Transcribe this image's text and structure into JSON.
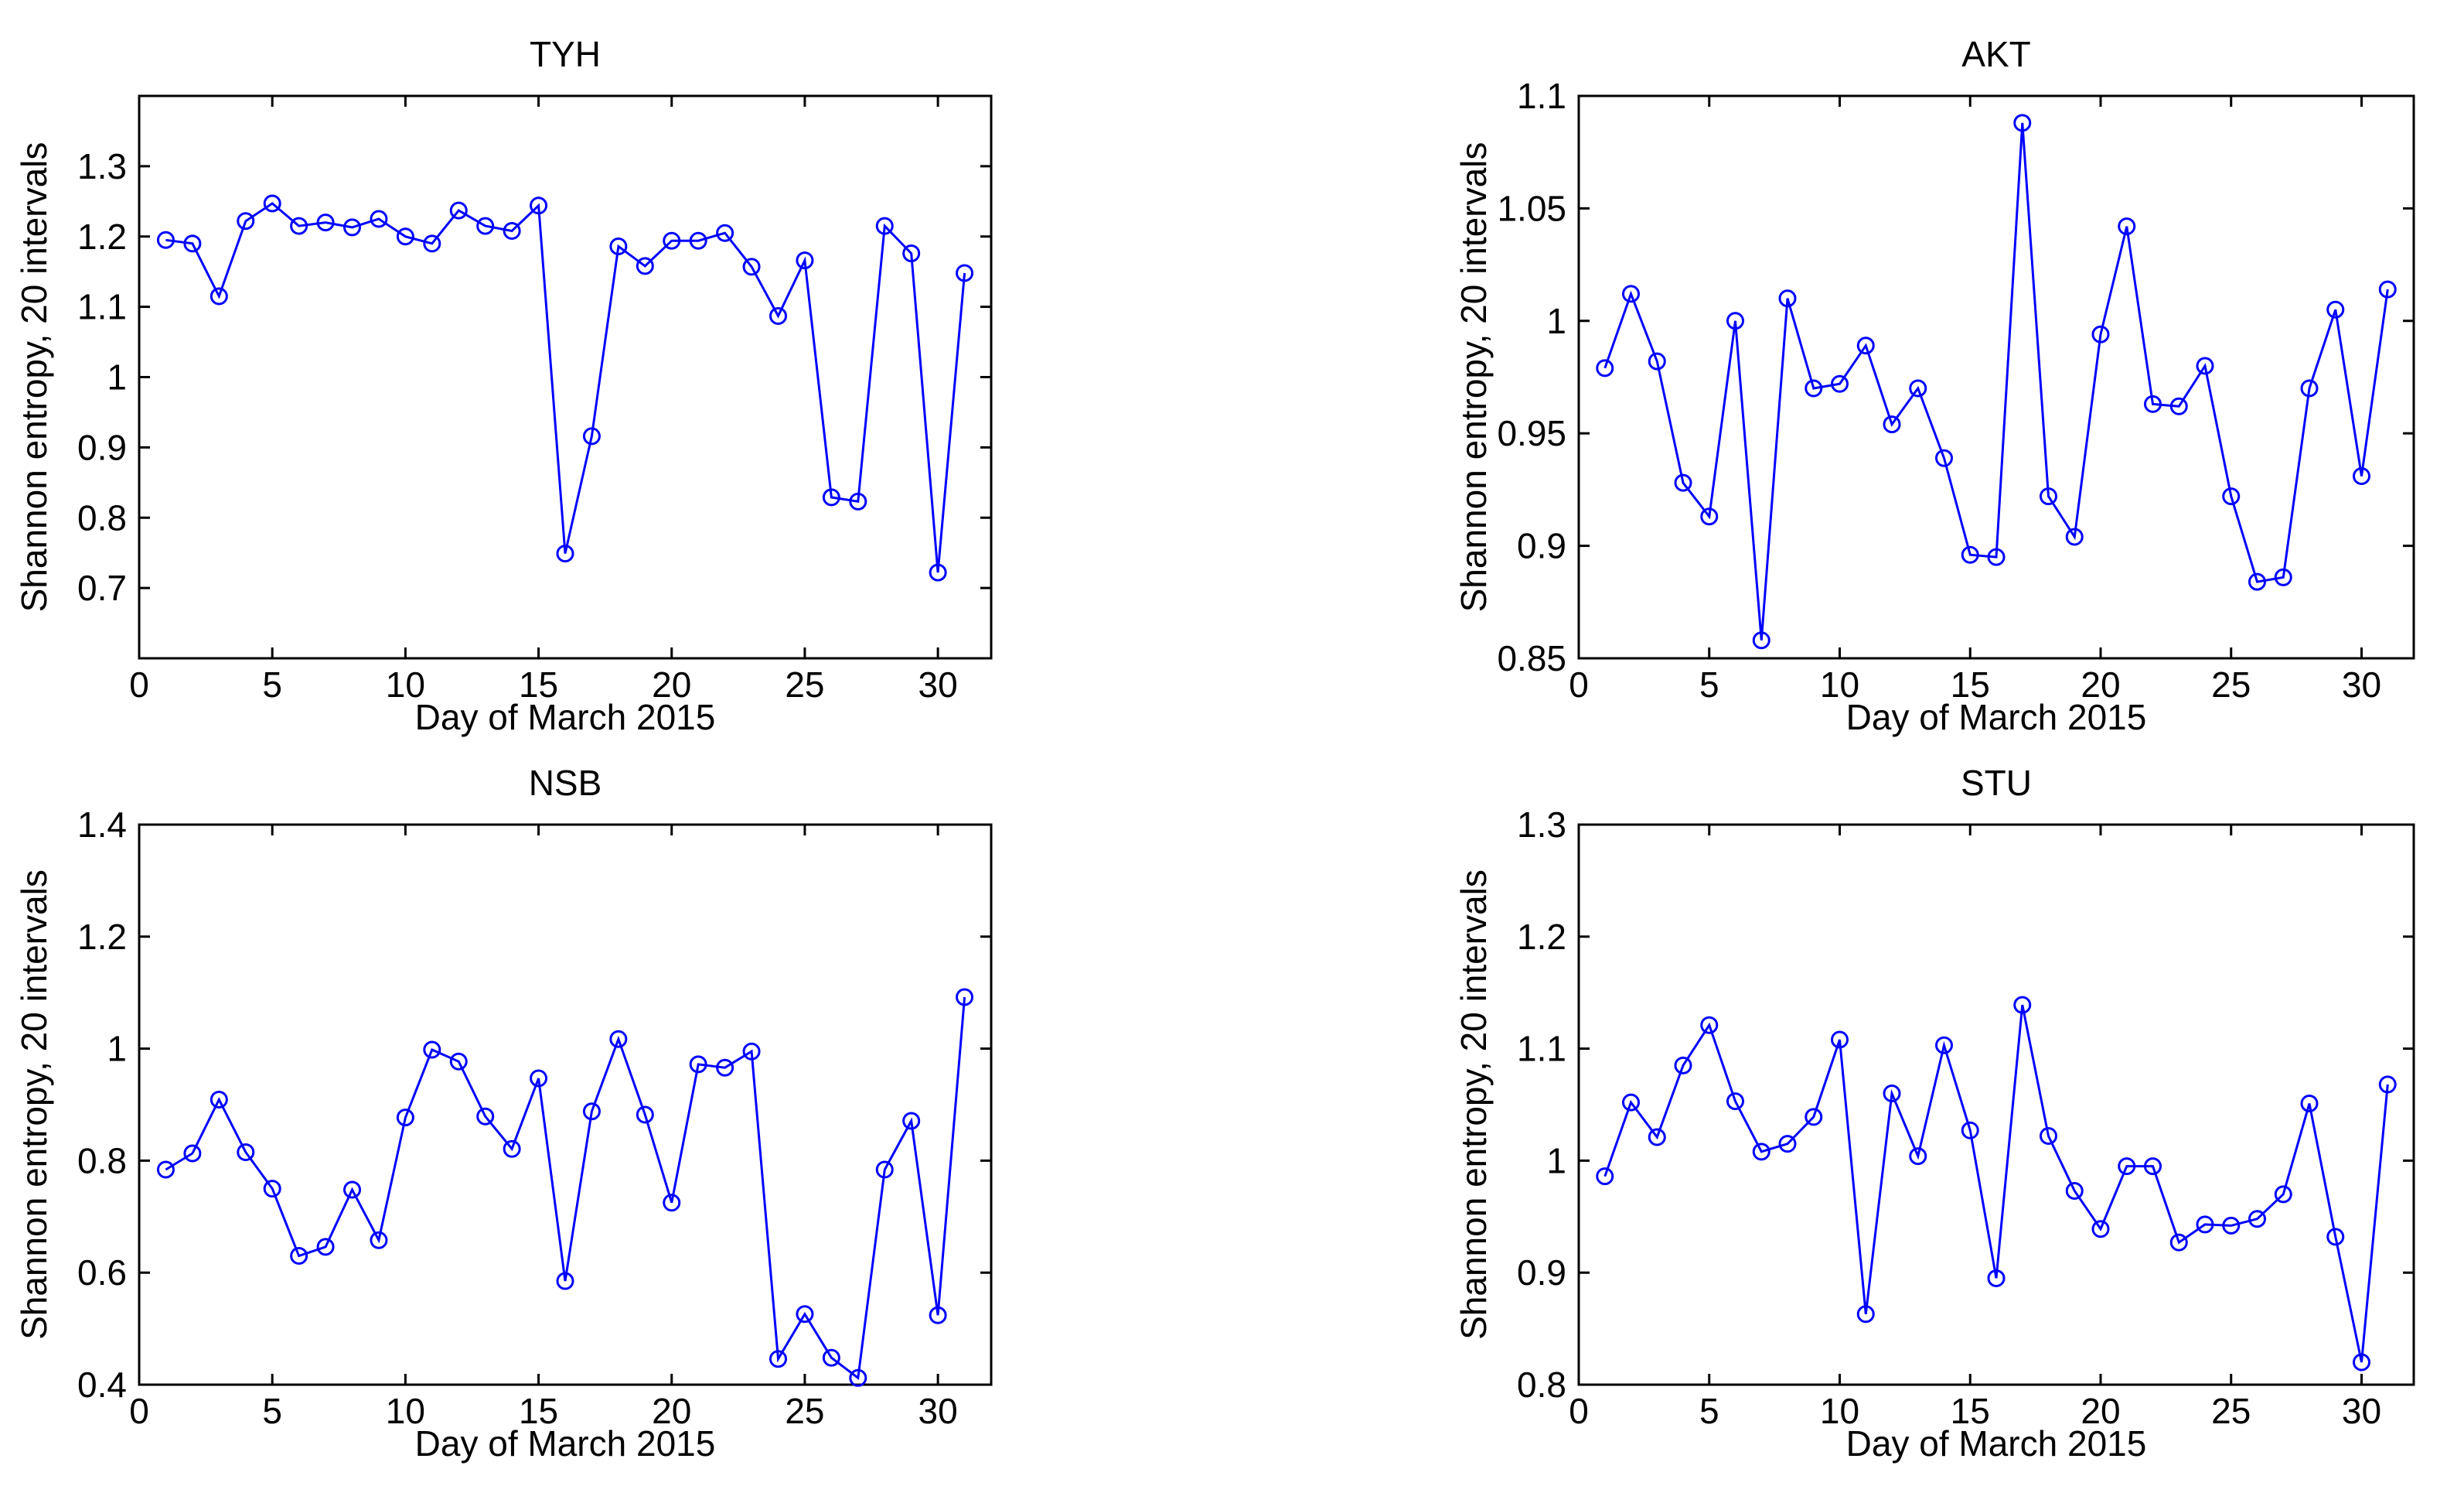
{
  "figure": {
    "description_free": true
  },
  "chart_data": [
    {
      "type": "line",
      "title": "TYH",
      "xlabel": "Day of March 2015",
      "ylabel": "Shannon entropy, 20 intervals",
      "xlim": [
        0,
        32
      ],
      "ylim": [
        0.6,
        1.4
      ],
      "xticks": [
        0,
        5,
        10,
        15,
        20,
        25,
        30
      ],
      "xtick_labels": [
        "0",
        "5",
        "10",
        "15",
        "20",
        "25",
        "30"
      ],
      "yticks": [
        0.7,
        0.8,
        0.9,
        1.0,
        1.1,
        1.2,
        1.3
      ],
      "ytick_labels": [
        "0.7",
        "0.8",
        "0.9",
        "1",
        "1.1",
        "1.2",
        "1.3"
      ],
      "grid": false,
      "color": "#0000ff",
      "marker": "circle",
      "x": [
        1,
        2,
        3,
        4,
        5,
        6,
        7,
        8,
        9,
        10,
        11,
        12,
        13,
        14,
        15,
        16,
        17,
        18,
        19,
        20,
        21,
        22,
        23,
        24,
        25,
        26,
        27,
        28,
        29,
        30,
        31
      ],
      "values": [
        1.195,
        1.19,
        1.115,
        1.222,
        1.247,
        1.215,
        1.22,
        1.213,
        1.225,
        1.2,
        1.19,
        1.237,
        1.215,
        1.208,
        1.244,
        0.749,
        0.916,
        1.186,
        1.158,
        1.194,
        1.194,
        1.205,
        1.157,
        1.087,
        1.166,
        0.829,
        0.823,
        1.215,
        1.176,
        0.722,
        1.148
      ]
    },
    {
      "type": "line",
      "title": "AKT",
      "xlabel": "Day of March 2015",
      "ylabel": "Shannon entropy, 20 intervals",
      "xlim": [
        0,
        32
      ],
      "ylim": [
        0.85,
        1.1
      ],
      "xticks": [
        0,
        5,
        10,
        15,
        20,
        25,
        30
      ],
      "xtick_labels": [
        "0",
        "5",
        "10",
        "15",
        "20",
        "25",
        "30"
      ],
      "yticks": [
        0.85,
        0.9,
        0.95,
        1.0,
        1.05,
        1.1
      ],
      "ytick_labels": [
        "0.85",
        "0.9",
        "0.95",
        "1",
        "1.05",
        "1.1"
      ],
      "grid": false,
      "color": "#0000ff",
      "marker": "circle",
      "x": [
        1,
        2,
        3,
        4,
        5,
        6,
        7,
        8,
        9,
        10,
        11,
        12,
        13,
        14,
        15,
        16,
        17,
        18,
        19,
        20,
        21,
        22,
        23,
        24,
        25,
        26,
        27,
        28,
        29,
        30,
        31
      ],
      "values": [
        0.979,
        1.012,
        0.982,
        0.928,
        0.913,
        1.0,
        0.858,
        1.01,
        0.97,
        0.972,
        0.989,
        0.954,
        0.97,
        0.939,
        0.896,
        0.895,
        1.088,
        0.922,
        0.904,
        0.994,
        1.042,
        0.963,
        0.962,
        0.98,
        0.922,
        0.884,
        0.886,
        0.97,
        1.005,
        0.931,
        1.014
      ]
    },
    {
      "type": "line",
      "title": "NSB",
      "xlabel": "Day of March 2015",
      "ylabel": "Shannon entropy, 20 intervals",
      "xlim": [
        0,
        32
      ],
      "ylim": [
        0.4,
        1.4
      ],
      "xticks": [
        0,
        5,
        10,
        15,
        20,
        25,
        30
      ],
      "xtick_labels": [
        "0",
        "5",
        "10",
        "15",
        "20",
        "25",
        "30"
      ],
      "yticks": [
        0.4,
        0.6,
        0.8,
        1.0,
        1.2,
        1.4
      ],
      "ytick_labels": [
        "0.4",
        "0.6",
        "0.8",
        "1",
        "1.2",
        "1.4"
      ],
      "grid": false,
      "color": "#0000ff",
      "marker": "circle",
      "x": [
        1,
        2,
        3,
        4,
        5,
        6,
        7,
        8,
        9,
        10,
        11,
        12,
        13,
        14,
        15,
        16,
        17,
        18,
        19,
        20,
        21,
        22,
        23,
        24,
        25,
        26,
        27,
        28,
        29,
        30,
        31
      ],
      "values": [
        0.784,
        0.813,
        0.909,
        0.815,
        0.75,
        0.63,
        0.646,
        0.748,
        0.658,
        0.877,
        0.998,
        0.977,
        0.879,
        0.821,
        0.947,
        0.585,
        0.888,
        1.017,
        0.882,
        0.725,
        0.972,
        0.966,
        0.995,
        0.446,
        0.526,
        0.448,
        0.412,
        0.784,
        0.871,
        0.524,
        1.092
      ]
    },
    {
      "type": "line",
      "title": "STU",
      "xlabel": "Day of March 2015",
      "ylabel": "Shannon entropy, 20 intervals",
      "xlim": [
        0,
        32
      ],
      "ylim": [
        0.8,
        1.3
      ],
      "xticks": [
        0,
        5,
        10,
        15,
        20,
        25,
        30
      ],
      "xtick_labels": [
        "0",
        "5",
        "10",
        "15",
        "20",
        "25",
        "30"
      ],
      "yticks": [
        0.8,
        0.9,
        1.0,
        1.1,
        1.2,
        1.3
      ],
      "ytick_labels": [
        "0.8",
        "0.9",
        "1",
        "1.1",
        "1.2",
        "1.3"
      ],
      "grid": false,
      "color": "#0000ff",
      "marker": "circle",
      "x": [
        1,
        2,
        3,
        4,
        5,
        6,
        7,
        8,
        9,
        10,
        11,
        12,
        13,
        14,
        15,
        16,
        17,
        18,
        19,
        20,
        21,
        22,
        23,
        24,
        25,
        26,
        27,
        28,
        29,
        30,
        31
      ],
      "values": [
        0.986,
        1.052,
        1.021,
        1.085,
        1.121,
        1.053,
        1.008,
        1.015,
        1.039,
        1.108,
        0.863,
        1.06,
        1.004,
        1.103,
        1.027,
        0.895,
        1.139,
        1.022,
        0.973,
        0.939,
        0.995,
        0.995,
        0.927,
        0.943,
        0.942,
        0.948,
        0.97,
        1.051,
        0.932,
        0.82,
        1.068
      ]
    }
  ]
}
